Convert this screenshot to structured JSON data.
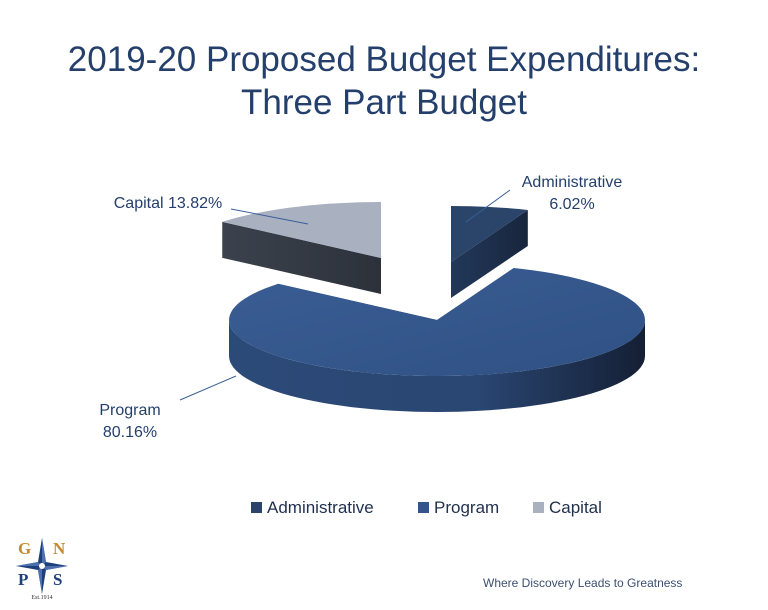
{
  "title": {
    "line1": "2019-20 Proposed Budget Expenditures:",
    "line2": "Three Part Budget"
  },
  "chart_data": {
    "type": "pie",
    "categories": [
      "Administrative",
      "Program",
      "Capital"
    ],
    "values": [
      6.02,
      80.16,
      13.82
    ],
    "unit": "%",
    "data_labels": [
      {
        "category": "Administrative",
        "lines": [
          "Administrative",
          "6.02%"
        ]
      },
      {
        "category": "Program",
        "lines": [
          "Program",
          "80.16%"
        ]
      },
      {
        "category": "Capital",
        "lines": [
          "Capital 13.82%"
        ]
      }
    ],
    "legend": [
      "Administrative",
      "Program",
      "Capital"
    ],
    "legend_position": "bottom",
    "style": "3d-exploded",
    "colors": {
      "Administrative": "#2a4569",
      "Program": "#33558a",
      "Capital": "#a9b0c0"
    }
  },
  "footer": {
    "tagline": "Where Discovery Leads to Greatness",
    "logo": {
      "letters": [
        "G",
        "N",
        "P",
        "S"
      ],
      "est": "Est.1914",
      "icon": "compass-star-icon"
    }
  }
}
